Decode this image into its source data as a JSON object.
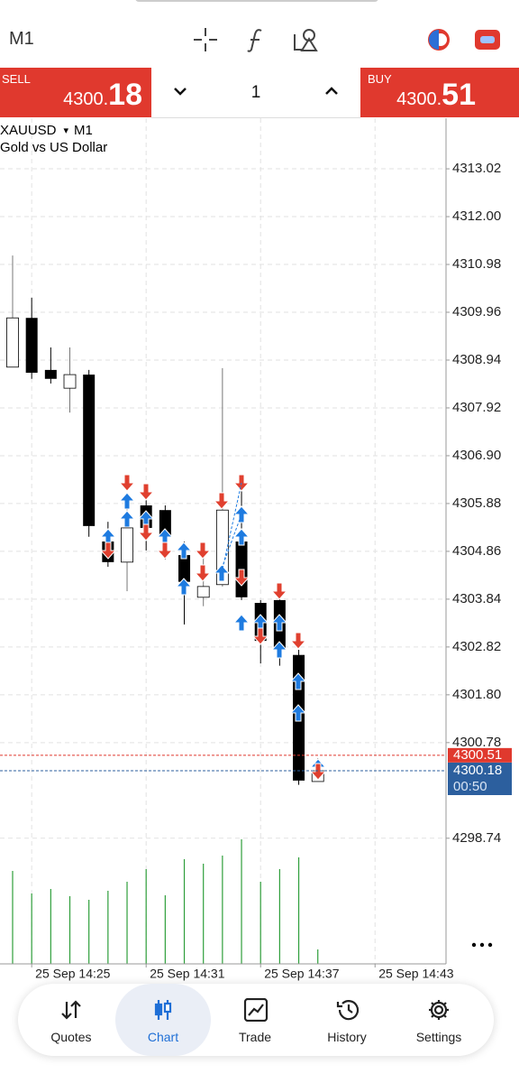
{
  "top_bar": {
    "timeframe": "M1"
  },
  "trade_bar": {
    "sell_label": "SELL",
    "sell_price_main": "4300.",
    "sell_price_big": "18",
    "lot": "1",
    "buy_label": "BUY",
    "buy_price_main": "4300.",
    "buy_price_big": "51"
  },
  "chart": {
    "type": "candlestick",
    "symbol": "XAUUSD",
    "timeframe": "M1",
    "description": "Gold vs US Dollar",
    "categories": [
      null,
      "25 Sep 14:25",
      null,
      null,
      null,
      null,
      null,
      "25 Sep 14:31",
      null,
      null,
      null,
      null,
      null,
      "25 Sep 14:37",
      null,
      null,
      null,
      null,
      null,
      "25 Sep 14:43"
    ],
    "open": [
      4308.79,
      4309.84,
      4308.73,
      4308.34,
      4308.63,
      4305.07,
      4304.63,
      4305.84,
      4305.74,
      4304.78,
      4303.88,
      4304.15,
      4305.07,
      4303.76,
      4303.82,
      4302.65,
      4299.95,
      null,
      null,
      null
    ],
    "high": [
      4311.17,
      4310.27,
      4309.21,
      4309.21,
      4308.73,
      4305.49,
      4305.84,
      4306.13,
      4305.84,
      4305.07,
      4304.97,
      4308.77,
      4306.42,
      4303.82,
      4303.92,
      4302.76,
      4300.45,
      null,
      null,
      null
    ],
    "low": [
      4308.79,
      4308.54,
      4308.44,
      4307.82,
      4305.17,
      4304.53,
      4304.01,
      4304.88,
      4304.69,
      4303.3,
      4303.69,
      4304.11,
      4303.82,
      4302.47,
      4302.42,
      4299.88,
      4299.95,
      null,
      null,
      null
    ],
    "close": [
      4309.84,
      4308.67,
      4308.54,
      4308.63,
      4305.4,
      4304.63,
      4305.36,
      4305.36,
      4305.17,
      4304.21,
      4304.11,
      4305.74,
      4303.88,
      4302.95,
      4302.76,
      4299.97,
      4300.18,
      null,
      null,
      null
    ],
    "volume": [
      103,
      78,
      83,
      75,
      71,
      81,
      91,
      105,
      76,
      116,
      111,
      120,
      138,
      91,
      105,
      118,
      16,
      null,
      null,
      null
    ],
    "volume_lim": [
      0,
      150
    ],
    "ylim": [
      4296.06,
      4314.08
    ],
    "yticks": [
      4313.02,
      {
        "value": 4312,
        "label": "4312.00"
      },
      4310.98,
      4309.96,
      4308.94,
      4307.92,
      {
        "value": 4306.9,
        "label": "4306.90"
      },
      4305.88,
      4304.86,
      4303.84,
      4302.82,
      {
        "value": 4301.8,
        "label": "4301.80"
      },
      4300.78,
      4298.74
    ],
    "ask": 4300.51,
    "bid": 4300.18,
    "countdown": "00:50",
    "grid": true,
    "up_color": "#ffffff",
    "down_color": "#000000",
    "volume_color": "#2e9e3a",
    "ask_color": "#e0392e",
    "bid_color": "#2c5f9e"
  },
  "nav": {
    "items": [
      "Quotes",
      "Chart",
      "Trade",
      "History",
      "Settings"
    ],
    "active": 1
  }
}
